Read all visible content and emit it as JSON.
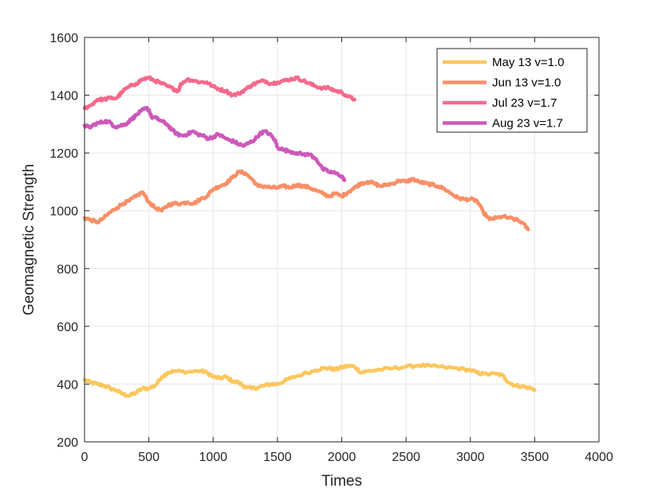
{
  "chart_data": {
    "type": "line",
    "title": "",
    "xlabel": "Times",
    "ylabel": "Geomagnetic Strength",
    "xlim": [
      0,
      4000
    ],
    "ylim": [
      200,
      1600
    ],
    "xticks": [
      "0",
      "500",
      "1000",
      "1500",
      "2000",
      "2500",
      "3000",
      "3500",
      "4000"
    ],
    "yticks": [
      "200",
      "400",
      "600",
      "800",
      "1000",
      "1200",
      "1400",
      "1600"
    ],
    "grid": true,
    "legend_position": "top-right",
    "series": [
      {
        "name": "May 13  v=1.0",
        "color": "#fbc75d",
        "points": [
          [
            0,
            415
          ],
          [
            50,
            405
          ],
          [
            100,
            400
          ],
          [
            150,
            395
          ],
          [
            200,
            385
          ],
          [
            250,
            378
          ],
          [
            300,
            365
          ],
          [
            350,
            360
          ],
          [
            400,
            370
          ],
          [
            450,
            385
          ],
          [
            500,
            385
          ],
          [
            550,
            395
          ],
          [
            600,
            425
          ],
          [
            650,
            440
          ],
          [
            700,
            445
          ],
          [
            800,
            442
          ],
          [
            900,
            446
          ],
          [
            950,
            440
          ],
          [
            1000,
            425
          ],
          [
            1050,
            420
          ],
          [
            1100,
            425
          ],
          [
            1150,
            410
          ],
          [
            1200,
            405
          ],
          [
            1250,
            390
          ],
          [
            1300,
            385
          ],
          [
            1350,
            388
          ],
          [
            1400,
            395
          ],
          [
            1450,
            400
          ],
          [
            1500,
            400
          ],
          [
            1550,
            410
          ],
          [
            1600,
            420
          ],
          [
            1700,
            435
          ],
          [
            1800,
            448
          ],
          [
            1850,
            455
          ],
          [
            1900,
            455
          ],
          [
            1950,
            450
          ],
          [
            2000,
            458
          ],
          [
            2050,
            463
          ],
          [
            2100,
            460
          ],
          [
            2150,
            440
          ],
          [
            2200,
            445
          ],
          [
            2300,
            450
          ],
          [
            2400,
            455
          ],
          [
            2500,
            460
          ],
          [
            2600,
            465
          ],
          [
            2700,
            462
          ],
          [
            2800,
            458
          ],
          [
            2900,
            455
          ],
          [
            3000,
            448
          ],
          [
            3050,
            440
          ],
          [
            3100,
            435
          ],
          [
            3200,
            435
          ],
          [
            3250,
            430
          ],
          [
            3300,
            405
          ],
          [
            3350,
            395
          ],
          [
            3400,
            392
          ],
          [
            3450,
            388
          ],
          [
            3500,
            380
          ]
        ]
      },
      {
        "name": "Jun 13  v=1.0",
        "color": "#f88f67",
        "points": [
          [
            0,
            975
          ],
          [
            50,
            968
          ],
          [
            100,
            960
          ],
          [
            150,
            975
          ],
          [
            200,
            995
          ],
          [
            250,
            1010
          ],
          [
            300,
            1025
          ],
          [
            350,
            1035
          ],
          [
            400,
            1050
          ],
          [
            450,
            1065
          ],
          [
            500,
            1030
          ],
          [
            550,
            1010
          ],
          [
            600,
            1000
          ],
          [
            650,
            1020
          ],
          [
            700,
            1025
          ],
          [
            750,
            1025
          ],
          [
            800,
            1030
          ],
          [
            850,
            1025
          ],
          [
            900,
            1040
          ],
          [
            950,
            1050
          ],
          [
            1000,
            1075
          ],
          [
            1050,
            1085
          ],
          [
            1100,
            1095
          ],
          [
            1150,
            1115
          ],
          [
            1200,
            1135
          ],
          [
            1250,
            1130
          ],
          [
            1300,
            1110
          ],
          [
            1350,
            1085
          ],
          [
            1400,
            1085
          ],
          [
            1450,
            1080
          ],
          [
            1500,
            1080
          ],
          [
            1550,
            1085
          ],
          [
            1600,
            1080
          ],
          [
            1650,
            1090
          ],
          [
            1700,
            1085
          ],
          [
            1750,
            1080
          ],
          [
            1800,
            1070
          ],
          [
            1850,
            1060
          ],
          [
            1900,
            1050
          ],
          [
            1950,
            1060
          ],
          [
            2000,
            1050
          ],
          [
            2050,
            1065
          ],
          [
            2100,
            1080
          ],
          [
            2150,
            1095
          ],
          [
            2200,
            1100
          ],
          [
            2250,
            1095
          ],
          [
            2300,
            1085
          ],
          [
            2350,
            1090
          ],
          [
            2400,
            1095
          ],
          [
            2450,
            1105
          ],
          [
            2500,
            1100
          ],
          [
            2550,
            1110
          ],
          [
            2600,
            1100
          ],
          [
            2650,
            1095
          ],
          [
            2700,
            1090
          ],
          [
            2750,
            1085
          ],
          [
            2800,
            1075
          ],
          [
            2850,
            1060
          ],
          [
            2900,
            1045
          ],
          [
            2950,
            1040
          ],
          [
            3000,
            1040
          ],
          [
            3050,
            1035
          ],
          [
            3100,
            995
          ],
          [
            3150,
            970
          ],
          [
            3200,
            975
          ],
          [
            3250,
            980
          ],
          [
            3300,
            975
          ],
          [
            3350,
            970
          ],
          [
            3400,
            960
          ],
          [
            3450,
            935
          ]
        ]
      },
      {
        "name": "Jul 23  v=1.7",
        "color": "#f46a8a",
        "points": [
          [
            0,
            1355
          ],
          [
            50,
            1365
          ],
          [
            100,
            1385
          ],
          [
            150,
            1385
          ],
          [
            200,
            1390
          ],
          [
            250,
            1390
          ],
          [
            300,
            1415
          ],
          [
            350,
            1430
          ],
          [
            400,
            1440
          ],
          [
            450,
            1455
          ],
          [
            500,
            1460
          ],
          [
            550,
            1450
          ],
          [
            600,
            1440
          ],
          [
            650,
            1430
          ],
          [
            700,
            1420
          ],
          [
            730,
            1415
          ],
          [
            750,
            1440
          ],
          [
            800,
            1455
          ],
          [
            850,
            1450
          ],
          [
            900,
            1445
          ],
          [
            950,
            1445
          ],
          [
            1000,
            1430
          ],
          [
            1050,
            1420
          ],
          [
            1100,
            1415
          ],
          [
            1150,
            1400
          ],
          [
            1200,
            1405
          ],
          [
            1250,
            1420
          ],
          [
            1300,
            1435
          ],
          [
            1350,
            1445
          ],
          [
            1400,
            1450
          ],
          [
            1450,
            1440
          ],
          [
            1500,
            1445
          ],
          [
            1550,
            1450
          ],
          [
            1600,
            1455
          ],
          [
            1650,
            1460
          ],
          [
            1700,
            1450
          ],
          [
            1750,
            1440
          ],
          [
            1800,
            1430
          ],
          [
            1850,
            1425
          ],
          [
            1900,
            1425
          ],
          [
            1950,
            1415
          ],
          [
            2000,
            1410
          ],
          [
            2050,
            1395
          ],
          [
            2100,
            1385
          ]
        ]
      },
      {
        "name": "Aug 23  v=1.7",
        "color": "#cd58ba",
        "points": [
          [
            0,
            1295
          ],
          [
            40,
            1288
          ],
          [
            80,
            1300
          ],
          [
            120,
            1305
          ],
          [
            160,
            1310
          ],
          [
            200,
            1305
          ],
          [
            240,
            1290
          ],
          [
            280,
            1295
          ],
          [
            320,
            1300
          ],
          [
            360,
            1315
          ],
          [
            400,
            1330
          ],
          [
            440,
            1345
          ],
          [
            480,
            1355
          ],
          [
            500,
            1350
          ],
          [
            520,
            1325
          ],
          [
            560,
            1320
          ],
          [
            600,
            1310
          ],
          [
            640,
            1300
          ],
          [
            680,
            1280
          ],
          [
            720,
            1265
          ],
          [
            760,
            1260
          ],
          [
            800,
            1265
          ],
          [
            840,
            1275
          ],
          [
            880,
            1265
          ],
          [
            920,
            1260
          ],
          [
            960,
            1250
          ],
          [
            1000,
            1255
          ],
          [
            1040,
            1265
          ],
          [
            1080,
            1255
          ],
          [
            1120,
            1245
          ],
          [
            1160,
            1240
          ],
          [
            1200,
            1230
          ],
          [
            1240,
            1225
          ],
          [
            1280,
            1235
          ],
          [
            1320,
            1245
          ],
          [
            1360,
            1265
          ],
          [
            1400,
            1275
          ],
          [
            1440,
            1265
          ],
          [
            1480,
            1245
          ],
          [
            1500,
            1220
          ],
          [
            1550,
            1210
          ],
          [
            1600,
            1205
          ],
          [
            1650,
            1200
          ],
          [
            1700,
            1195
          ],
          [
            1750,
            1195
          ],
          [
            1800,
            1180
          ],
          [
            1850,
            1145
          ],
          [
            1900,
            1135
          ],
          [
            1950,
            1130
          ],
          [
            2000,
            1120
          ],
          [
            2020,
            1105
          ]
        ]
      }
    ]
  }
}
